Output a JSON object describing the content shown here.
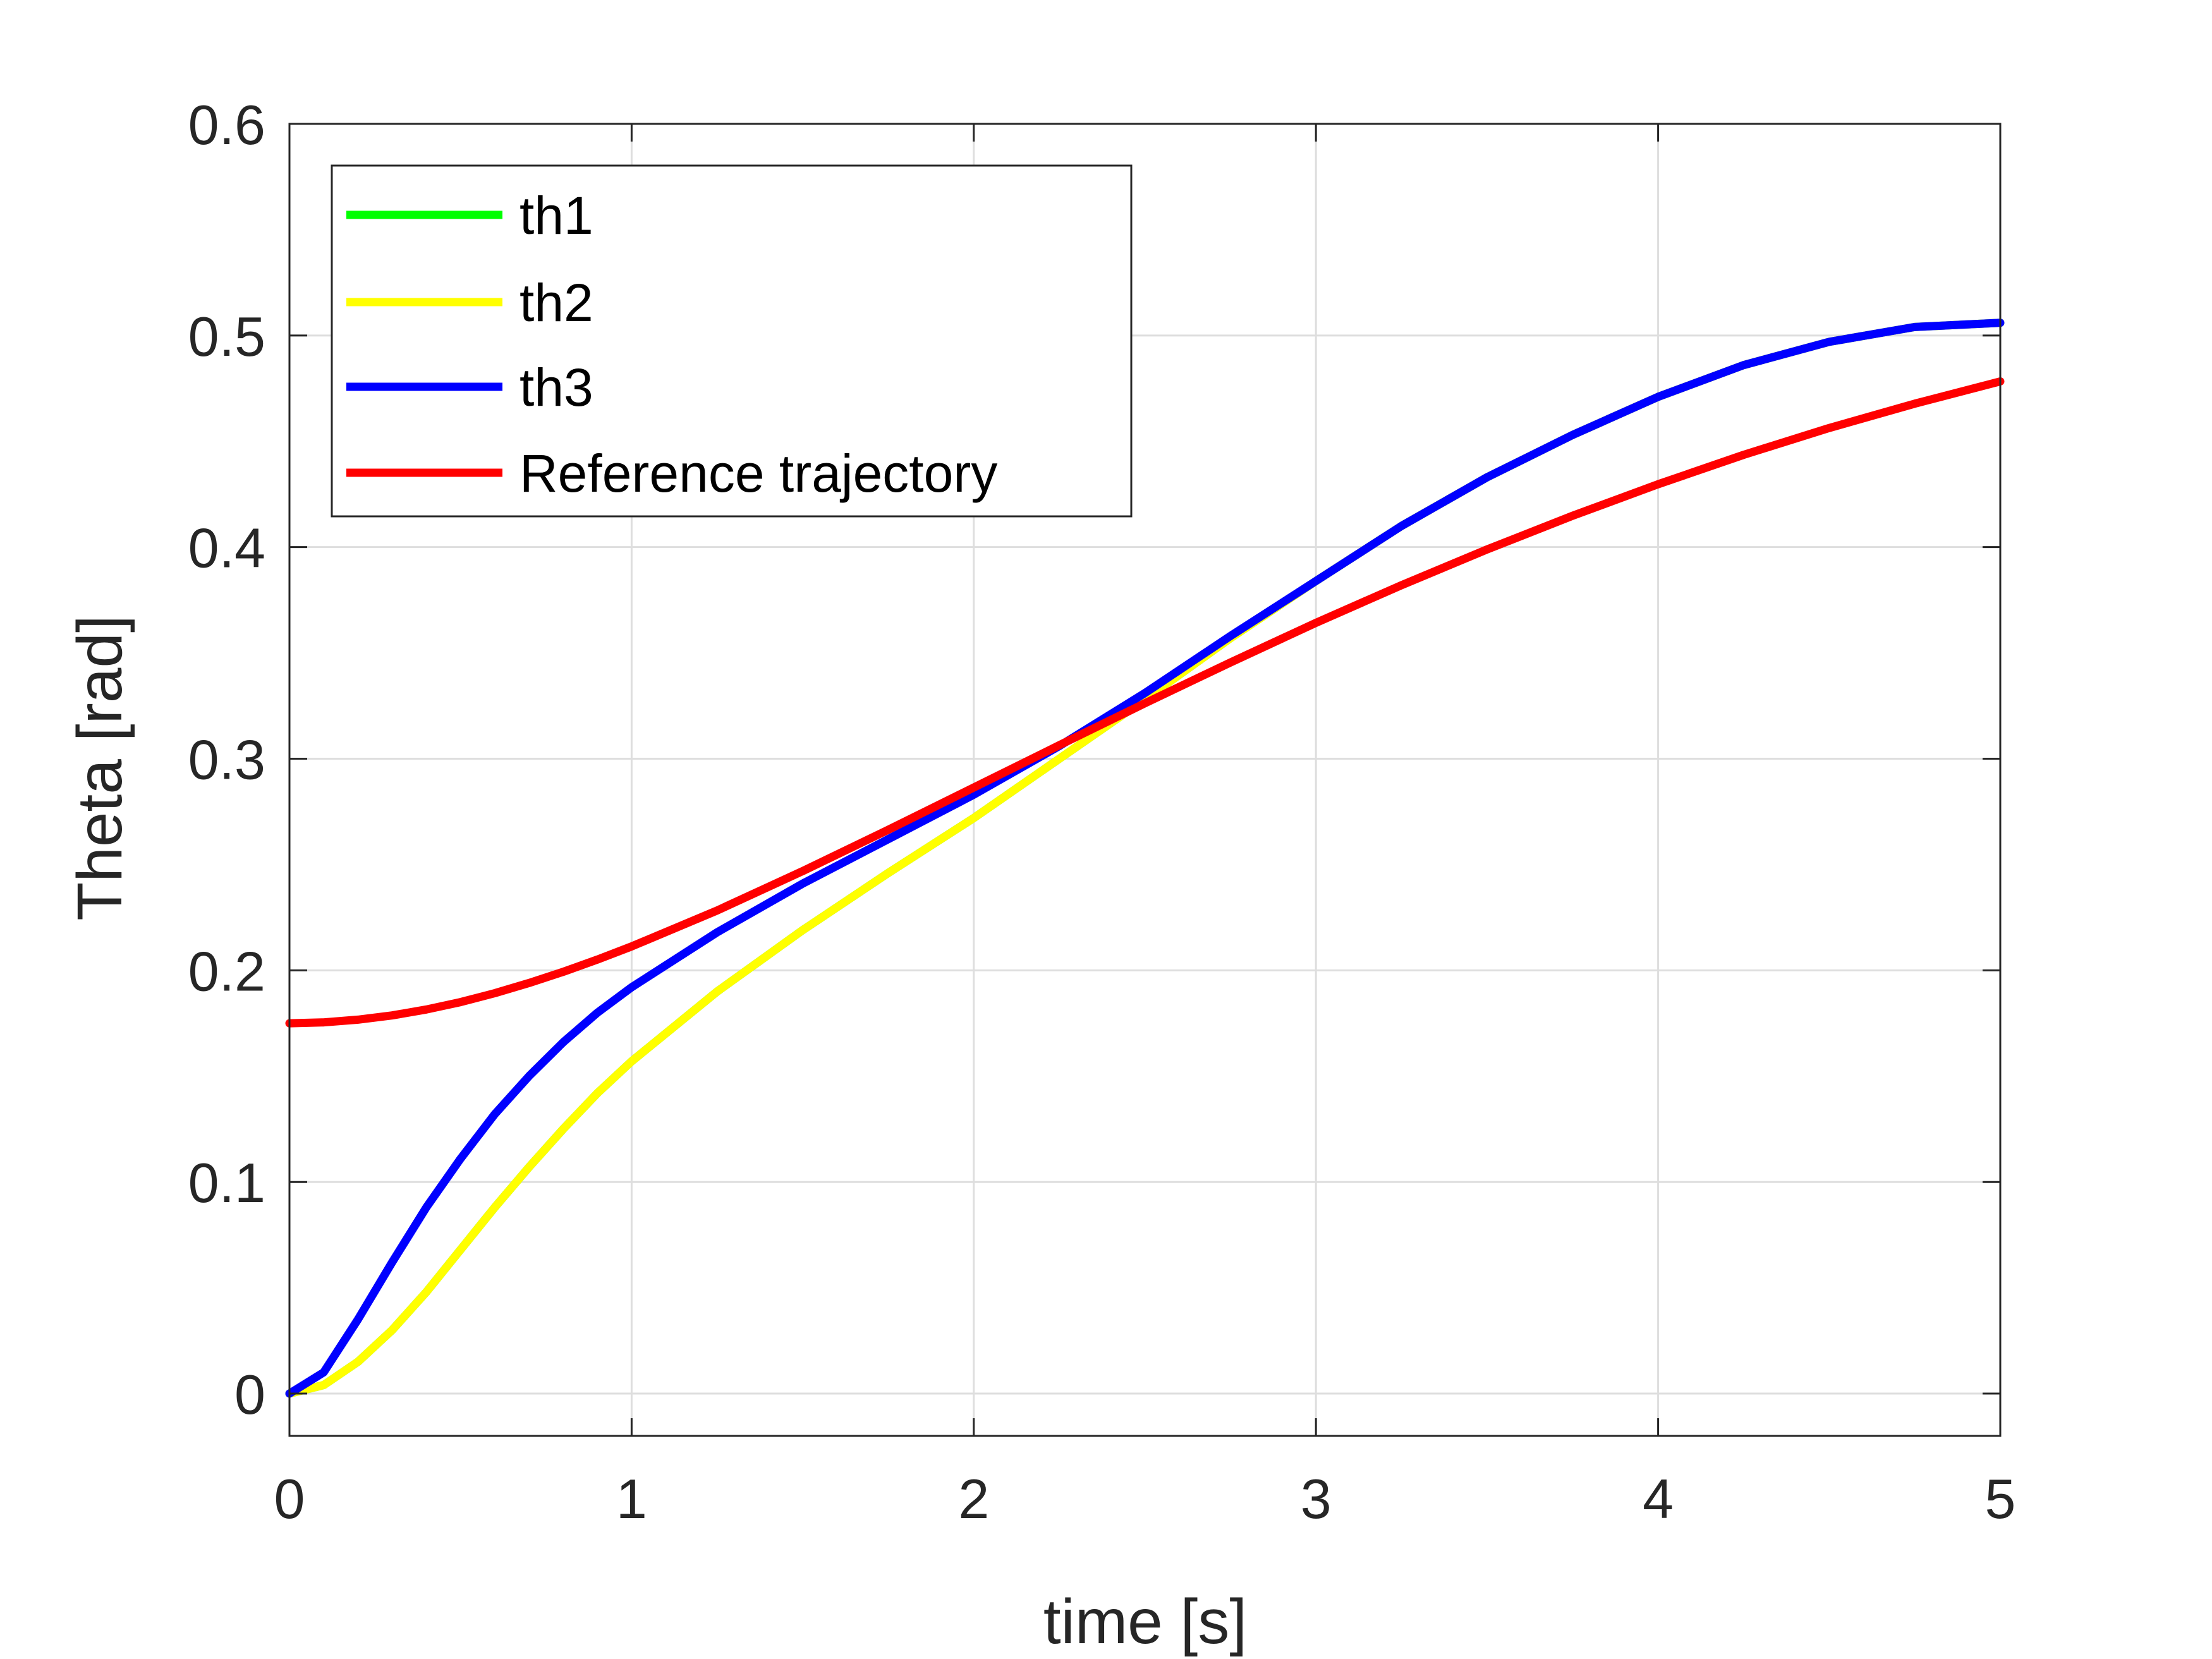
{
  "chart_data": {
    "type": "line",
    "title": "",
    "xlabel": "time [s]",
    "ylabel": "Theta [rad]",
    "xlim": [
      0,
      5
    ],
    "ylim": [
      -0.02,
      0.6
    ],
    "xticks": [
      0,
      1,
      2,
      3,
      4,
      5
    ],
    "xtick_labels": [
      "0",
      "1",
      "2",
      "3",
      "4",
      "5"
    ],
    "yticks": [
      0,
      0.1,
      0.2,
      0.3,
      0.4,
      0.5,
      0.6
    ],
    "ytick_labels": [
      "0",
      "0.1",
      "0.2",
      "0.3",
      "0.4",
      "0.5",
      "0.6"
    ],
    "grid": true,
    "legend_position": "top-left",
    "x": [
      0,
      0.1,
      0.2,
      0.3,
      0.4,
      0.5,
      0.6,
      0.7,
      0.8,
      0.9,
      1.0,
      1.25,
      1.5,
      1.75,
      2.0,
      2.25,
      2.5,
      2.75,
      3.0,
      3.25,
      3.5,
      3.75,
      4.0,
      4.25,
      4.5,
      4.75,
      5.0
    ],
    "series": [
      {
        "name": "th1",
        "color": "#00ff00",
        "values": [
          0.0,
          0.004,
          0.015,
          0.03,
          0.048,
          0.068,
          0.088,
          0.107,
          0.125,
          0.142,
          0.157,
          0.19,
          0.219,
          0.246,
          0.272,
          0.3,
          0.328,
          0.357,
          0.384,
          0.41,
          0.433,
          0.453,
          0.471,
          0.486,
          0.497,
          0.504,
          0.506
        ]
      },
      {
        "name": "th2",
        "color": "#ffff00",
        "values": [
          0.0,
          0.004,
          0.015,
          0.03,
          0.048,
          0.068,
          0.088,
          0.107,
          0.125,
          0.142,
          0.157,
          0.19,
          0.219,
          0.246,
          0.272,
          0.3,
          0.328,
          0.357,
          0.384,
          0.41,
          0.433,
          0.453,
          0.471,
          0.486,
          0.497,
          0.504,
          0.506
        ]
      },
      {
        "name": "th3",
        "color": "#0000ff",
        "values": [
          0.0,
          0.01,
          0.035,
          0.062,
          0.088,
          0.111,
          0.132,
          0.15,
          0.166,
          0.18,
          0.192,
          0.218,
          0.241,
          0.262,
          0.283,
          0.306,
          0.331,
          0.358,
          0.384,
          0.41,
          0.433,
          0.453,
          0.471,
          0.486,
          0.497,
          0.504,
          0.506
        ]
      },
      {
        "name": "Reference trajectory",
        "color": "#ff0000",
        "values": [
          0.175,
          0.1754,
          0.1767,
          0.1787,
          0.1815,
          0.185,
          0.1892,
          0.194,
          0.1993,
          0.2051,
          0.2113,
          0.2283,
          0.2469,
          0.2664,
          0.2864,
          0.3064,
          0.3262,
          0.3455,
          0.3642,
          0.382,
          0.3989,
          0.4148,
          0.4297,
          0.4436,
          0.4563,
          0.4678,
          0.4783
        ]
      }
    ]
  }
}
